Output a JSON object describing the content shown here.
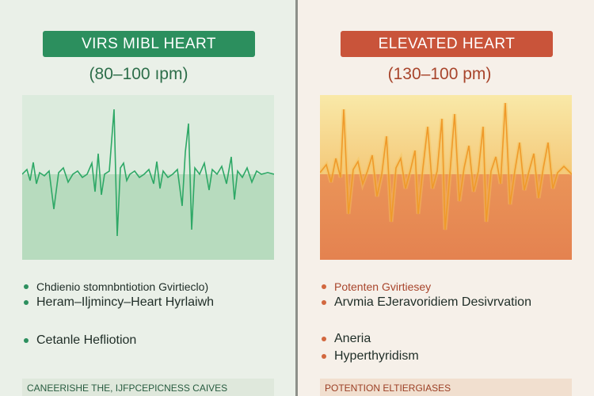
{
  "left": {
    "title": "VIRS MIBL HEART",
    "range": "(80–100 ıpm)",
    "bullets": [
      "Chdienio stomnbntiotion Gvirtieclo)",
      "Heram–Iljmincy–Heart Hyrlaiwh",
      "Cetanle Hefliotion"
    ],
    "footer": "CANEERISHE THE, IJFPCEPICNESS CAIVES",
    "colors": {
      "accent": "#2c8f5e",
      "area": "#b6dcc0",
      "trace": "#2ea866"
    }
  },
  "right": {
    "title": "ELEVATED HEART",
    "range": "(130–100 pm)",
    "bullets": [
      "Potenten Gvirtiesey",
      "Arvmia EJeravoridiem Desivrvation",
      "Aneria",
      "Hyperthyridism"
    ],
    "footer": "POTENTION ELTIERGIASES",
    "colors": {
      "accent": "#c9543a",
      "area_top": "#f8e7a8",
      "area_bottom": "#e98a55",
      "trace": "#f0a030"
    }
  }
}
